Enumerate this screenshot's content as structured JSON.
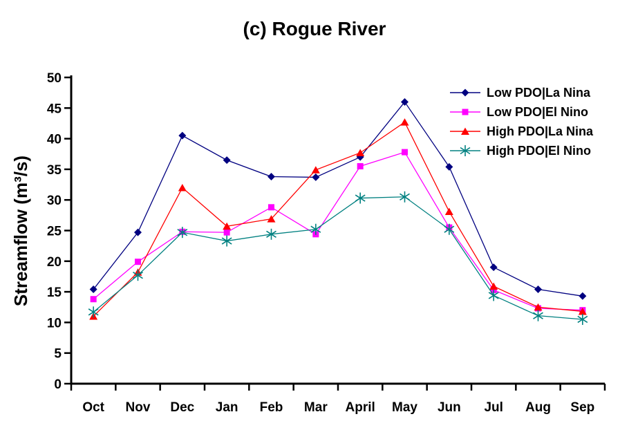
{
  "chart_data": {
    "type": "line",
    "title": "(c) Rogue River",
    "xlabel": "",
    "ylabel": "Streamflow (m³/s)",
    "ylim": [
      0,
      50
    ],
    "ytick_step": 5,
    "yticks": [
      0,
      5,
      10,
      15,
      20,
      25,
      30,
      35,
      40,
      45,
      50
    ],
    "grid": false,
    "legend_position": "top-right-inside",
    "categories": [
      "Oct",
      "Nov",
      "Dec",
      "Jan",
      "Feb",
      "Mar",
      "April",
      "May",
      "Jun",
      "Jul",
      "Aug",
      "Sep"
    ],
    "series": [
      {
        "name": "Low PDO|La Nina",
        "color": "#000080",
        "marker": "diamond",
        "values": [
          15.4,
          24.7,
          40.5,
          36.5,
          33.8,
          33.7,
          37.0,
          46.0,
          35.4,
          19.0,
          15.4,
          14.3
        ]
      },
      {
        "name": "Low PDO|El Nino",
        "color": "#FF00FF",
        "marker": "square",
        "values": [
          13.8,
          19.9,
          24.8,
          24.7,
          28.8,
          24.4,
          35.5,
          37.8,
          25.5,
          15.3,
          12.3,
          12.0
        ]
      },
      {
        "name": "High PDO|La Nina",
        "color": "#FF0000",
        "marker": "triangle",
        "values": [
          11.0,
          18.2,
          32.0,
          25.7,
          26.9,
          34.9,
          37.7,
          42.7,
          28.1,
          15.9,
          12.5,
          11.8
        ]
      },
      {
        "name": "High PDO|El Nino",
        "color": "#008080",
        "marker": "star",
        "values": [
          11.7,
          17.7,
          24.7,
          23.3,
          24.4,
          25.2,
          30.3,
          30.5,
          25.2,
          14.4,
          11.1,
          10.5
        ]
      }
    ]
  }
}
